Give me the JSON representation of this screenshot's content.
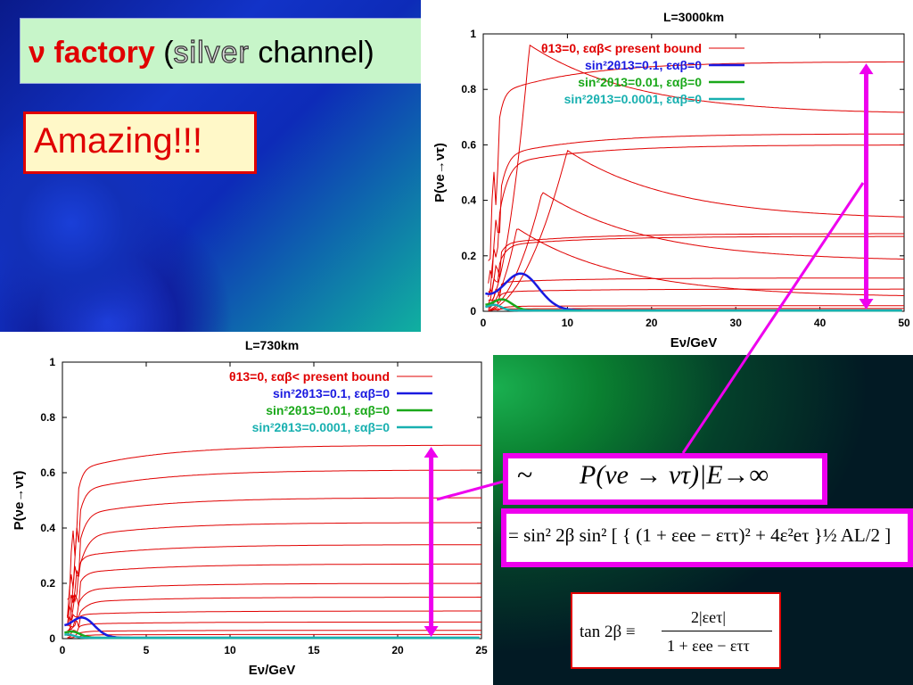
{
  "slide": {
    "title_nu": "ν",
    "title_factory": " factory",
    "title_open": " (",
    "title_silver": "silver",
    "title_channel": " channel)",
    "amazing": "Amazing!!!"
  },
  "colors": {
    "red": "#e00000",
    "magenta": "#ee00ee",
    "blue": "#1a1ae0",
    "green": "#1aa81a",
    "cyan": "#18b0b0"
  },
  "formulas": {
    "f1_tilde": "~",
    "f1_text": "P(νe → ντ)|E→∞",
    "f2_text": "= sin² 2β sin² [ { (1 + εee − εττ)² + 4ε²eτ }½ AL/2 ]",
    "f3_lhs": "tan 2β ≡",
    "f3_num": "2|εeτ|",
    "f3_den": "1 + εee − εττ"
  },
  "chart_data": [
    {
      "type": "line",
      "title": "L=3000km",
      "xlabel": "Eν/GeV",
      "ylabel": "P(νe→ντ)",
      "xlim": [
        0,
        50
      ],
      "ylim": [
        0,
        1
      ],
      "xticks": [
        "0",
        "10",
        "20",
        "30",
        "40",
        "50"
      ],
      "yticks": [
        "0",
        "0.2",
        "0.4",
        "0.6",
        "0.8",
        "1"
      ],
      "legend": [
        {
          "label": "θ13=0, εαβ< present bound",
          "color": "#e00000"
        },
        {
          "label": "sin²2θ13=0.1, εαβ=0",
          "color": "#1a1ae0"
        },
        {
          "label": "sin²2θ13=0.01, εαβ=0",
          "color": "#1aa81a"
        },
        {
          "label": "sin²2θ13=0.0001, εαβ=0",
          "color": "#18b0b0"
        }
      ],
      "red_asymptotes": [
        0.9,
        0.71,
        0.64,
        0.6,
        0.33,
        0.28,
        0.27,
        0.18,
        0.12,
        0.08,
        0.05,
        0.02,
        0.01
      ],
      "blue_peak": [
        4.5,
        0.13
      ],
      "arrow_x": 45.5,
      "arrow_range": [
        0,
        0.9
      ]
    },
    {
      "type": "line",
      "title": "L=730km",
      "xlabel": "Eν/GeV",
      "ylabel": "P(νe→ντ)",
      "xlim": [
        0,
        25
      ],
      "ylim": [
        0,
        1
      ],
      "xticks": [
        "0",
        "5",
        "10",
        "15",
        "20",
        "25"
      ],
      "yticks": [
        "0",
        "0.2",
        "0.4",
        "0.6",
        "0.8",
        "1"
      ],
      "legend": [
        {
          "label": "θ13=0, εαβ< present bound",
          "color": "#e00000"
        },
        {
          "label": "sin²2θ13=0.1, εαβ=0",
          "color": "#1a1ae0"
        },
        {
          "label": "sin²2θ13=0.01, εαβ=0",
          "color": "#1aa81a"
        },
        {
          "label": "sin²2θ13=0.0001, εαβ=0",
          "color": "#18b0b0"
        }
      ],
      "red_asymptotes": [
        0.7,
        0.61,
        0.51,
        0.42,
        0.34,
        0.27,
        0.2,
        0.15,
        0.1,
        0.06,
        0.03,
        0.015
      ],
      "blue_peak": [
        1.2,
        0.07
      ],
      "arrow_x": 22,
      "arrow_range": [
        0,
        0.7
      ]
    }
  ]
}
